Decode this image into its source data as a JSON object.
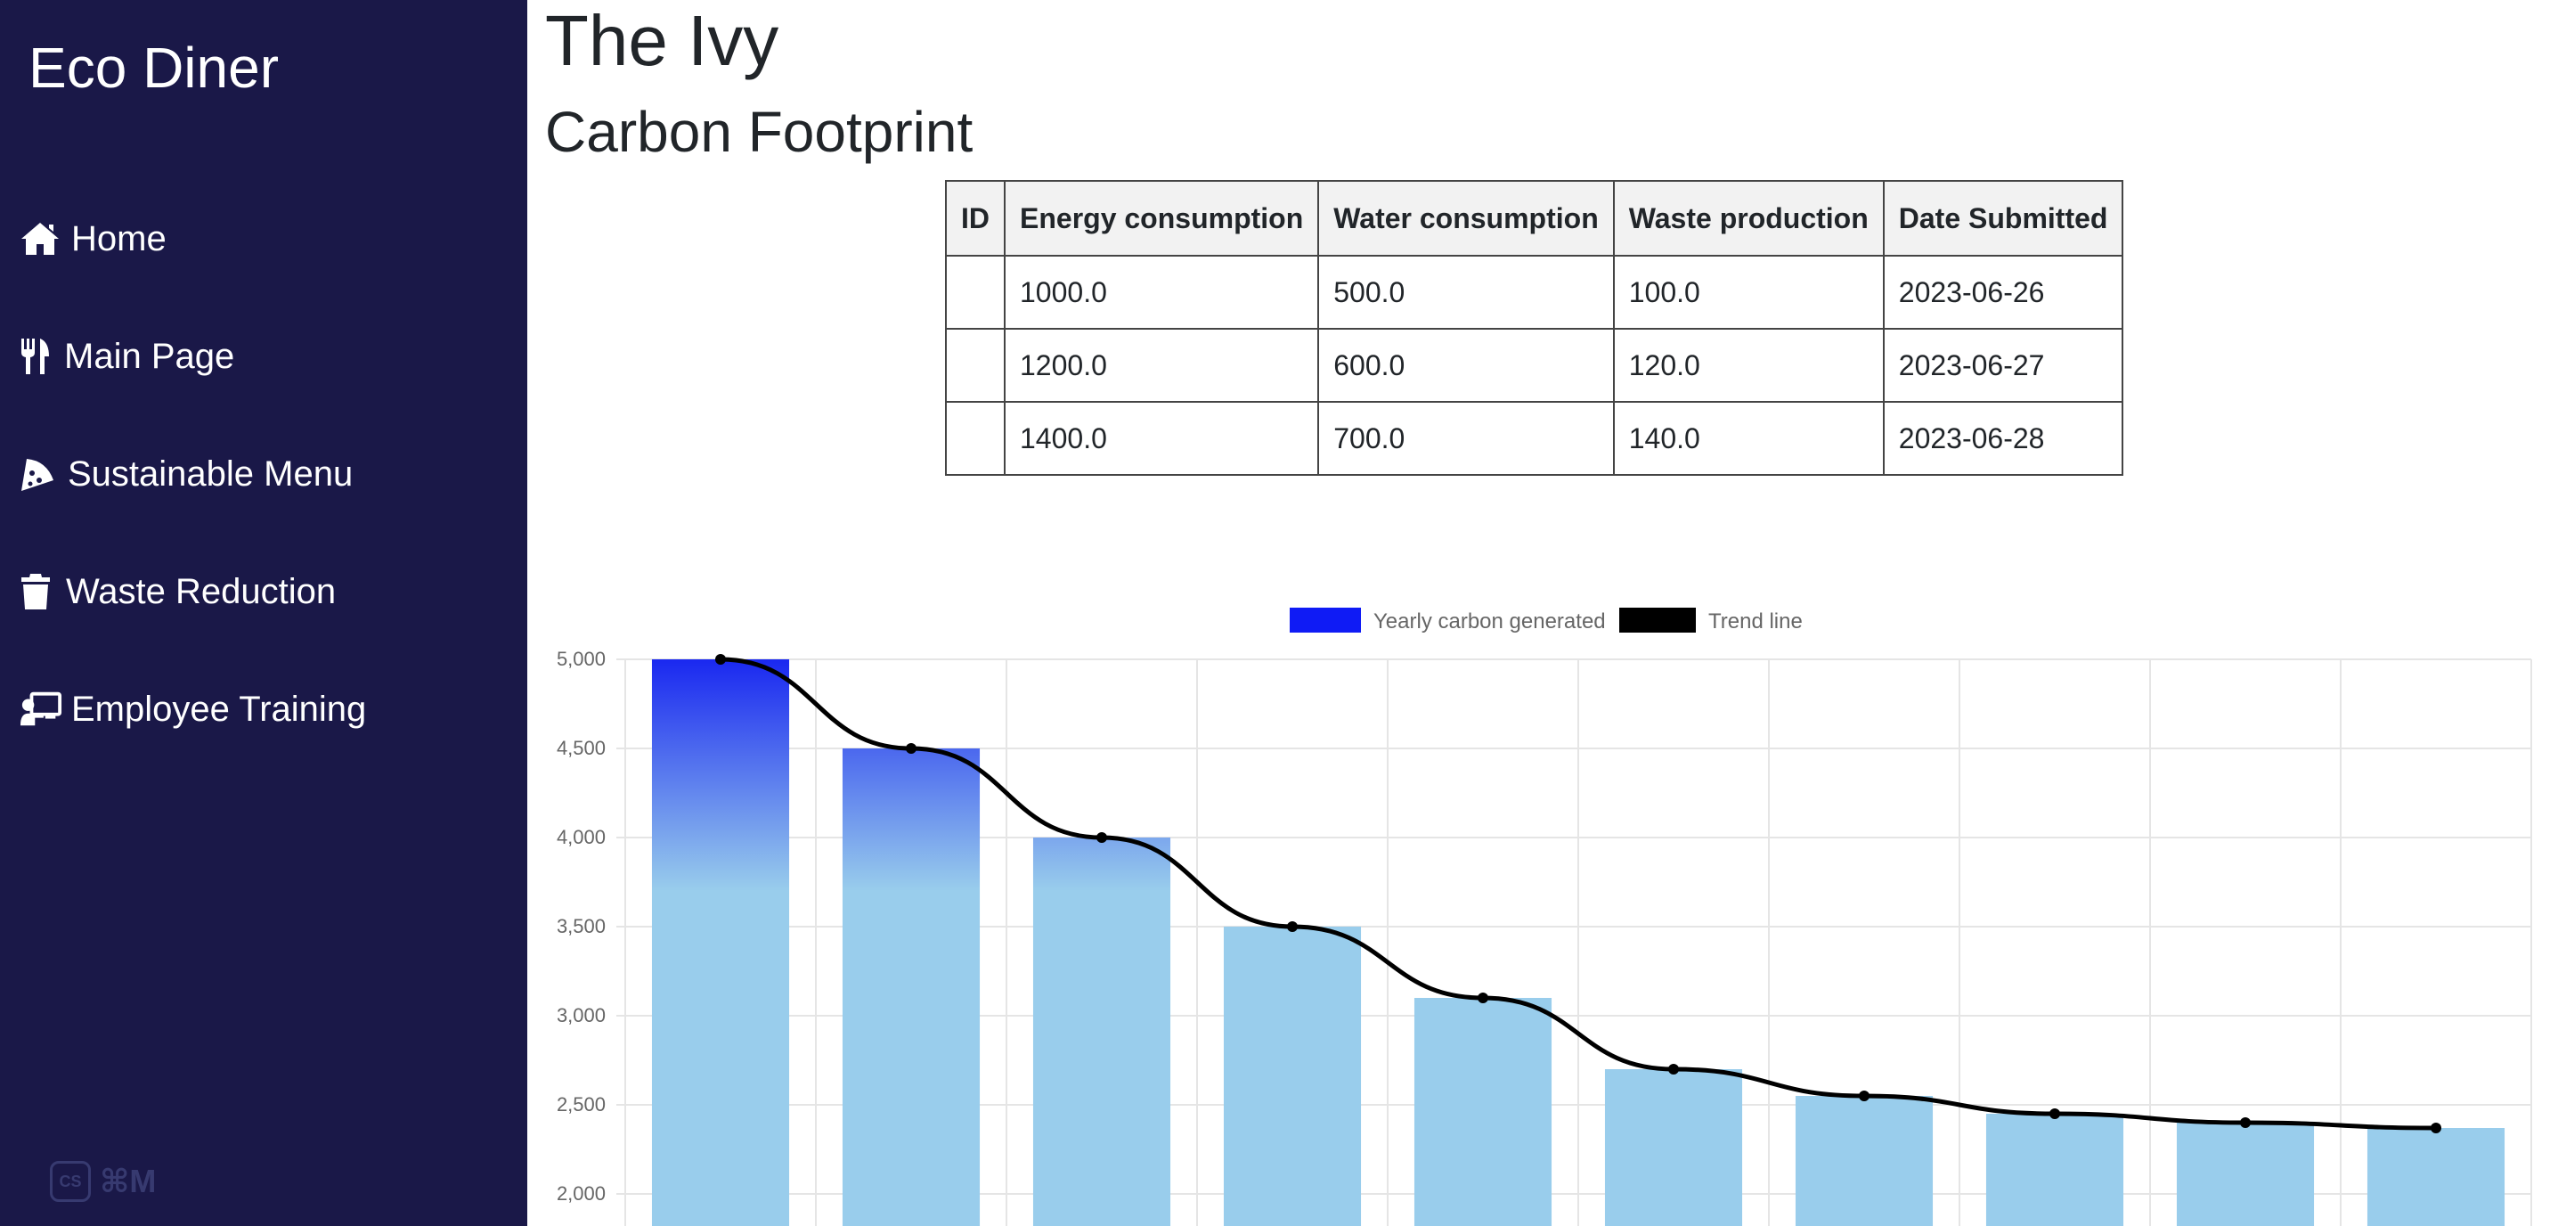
{
  "sidebar": {
    "brand": "Eco Diner",
    "items": [
      {
        "label": "Home",
        "icon": "home-icon"
      },
      {
        "label": "Main Page",
        "icon": "utensils-icon"
      },
      {
        "label": "Sustainable Menu",
        "icon": "pizza-slice-icon"
      },
      {
        "label": "Waste Reduction",
        "icon": "trash-icon"
      },
      {
        "label": "Employee Training",
        "icon": "chalkboard-teacher-icon"
      }
    ],
    "shortcut_badge": {
      "logo": "CS",
      "keys": "⌘M"
    }
  },
  "main": {
    "title": "The Ivy",
    "section_title": "Carbon Footprint"
  },
  "table": {
    "headers": [
      "ID",
      "Energy consumption",
      "Water consumption",
      "Waste production",
      "Date Submitted"
    ],
    "rows": [
      [
        "",
        "1000.0",
        "500.0",
        "100.0",
        "2023-06-26"
      ],
      [
        "",
        "1200.0",
        "600.0",
        "120.0",
        "2023-06-27"
      ],
      [
        "",
        "1400.0",
        "700.0",
        "140.0",
        "2023-06-28"
      ]
    ]
  },
  "colors": {
    "sidebar_bg": "#1a1848",
    "bar_base": "#99cdec",
    "bar_highlight": "#1a28f0",
    "trend_line": "#000000"
  },
  "chart_data": {
    "type": "bar",
    "series": [
      {
        "name": "Yearly carbon generated",
        "type": "bar",
        "values": [
          5000,
          4500,
          4000,
          3500,
          3100,
          2700,
          2550,
          2450,
          2400,
          2370
        ]
      },
      {
        "name": "Trend line",
        "type": "line",
        "values": [
          5000,
          4500,
          4000,
          3500,
          3100,
          2700,
          2550,
          2450,
          2400,
          2370
        ]
      }
    ],
    "legend": {
      "position": "top",
      "colors": [
        "#0f1bf5",
        "#000000"
      ]
    },
    "yticks": [
      "5,000",
      "4,500",
      "4,000",
      "3,500",
      "3,000",
      "2,500",
      "2,000"
    ],
    "ytick_values": [
      5000,
      4500,
      4000,
      3500,
      3000,
      2500,
      2000
    ],
    "ylim": [
      1680,
      5000
    ],
    "grid": true
  }
}
